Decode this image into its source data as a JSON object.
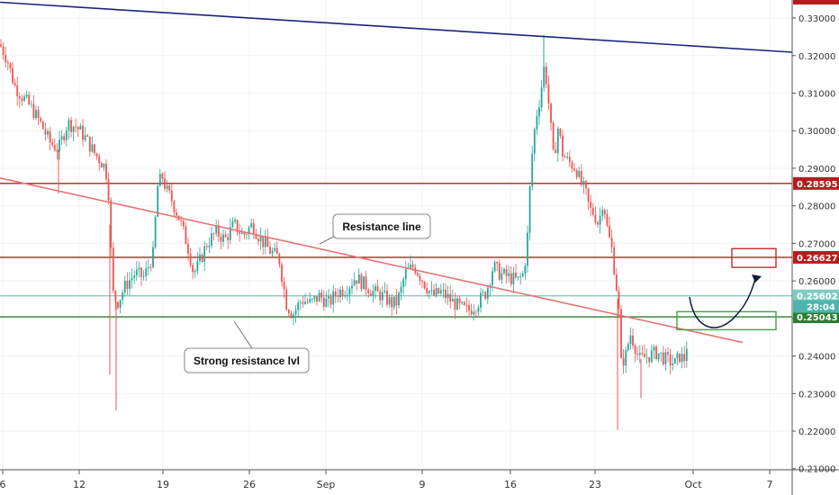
{
  "chart_data": {
    "type": "candlestick",
    "y_axis": {
      "ticks": [
        "0.33000",
        "0.32000",
        "0.31000",
        "0.30000",
        "0.29000",
        "0.28000",
        "0.27000",
        "0.26000",
        "0.25000",
        "0.24000",
        "0.23000",
        "0.22000",
        "0.21000"
      ],
      "ylim": [
        0.2097,
        0.3348
      ]
    },
    "x_axis": {
      "ticks": [
        "6",
        "12",
        "19",
        "26",
        "Sep",
        "9",
        "16",
        "23",
        "Oct",
        "7"
      ]
    },
    "price_path": [
      [
        0,
        0.323
      ],
      [
        8,
        0.319
      ],
      [
        16,
        0.312
      ],
      [
        25,
        0.309
      ],
      [
        35,
        0.306
      ],
      [
        45,
        0.302
      ],
      [
        55,
        0.297
      ],
      [
        65,
        0.295
      ],
      [
        75,
        0.302
      ],
      [
        85,
        0.301
      ],
      [
        95,
        0.298
      ],
      [
        105,
        0.294
      ],
      [
        115,
        0.291
      ],
      [
        120,
        0.287
      ],
      [
        125,
        0.257
      ],
      [
        130,
        0.254
      ],
      [
        140,
        0.259
      ],
      [
        150,
        0.262
      ],
      [
        160,
        0.261
      ],
      [
        170,
        0.267
      ],
      [
        175,
        0.285
      ],
      [
        180,
        0.288
      ],
      [
        185,
        0.284
      ],
      [
        190,
        0.282
      ],
      [
        200,
        0.276
      ],
      [
        210,
        0.268
      ],
      [
        215,
        0.262
      ],
      [
        220,
        0.264
      ],
      [
        230,
        0.27
      ],
      [
        240,
        0.273
      ],
      [
        250,
        0.271
      ],
      [
        260,
        0.275
      ],
      [
        270,
        0.272
      ],
      [
        280,
        0.275
      ],
      [
        290,
        0.271
      ],
      [
        300,
        0.268
      ],
      [
        310,
        0.266
      ],
      [
        318,
        0.254
      ],
      [
        325,
        0.251
      ],
      [
        335,
        0.255
      ],
      [
        345,
        0.254
      ],
      [
        355,
        0.256
      ],
      [
        365,
        0.254
      ],
      [
        375,
        0.257
      ],
      [
        385,
        0.258
      ],
      [
        395,
        0.261
      ],
      [
        405,
        0.259
      ],
      [
        415,
        0.257
      ],
      [
        425,
        0.256
      ],
      [
        435,
        0.254
      ],
      [
        440,
        0.254
      ],
      [
        445,
        0.257
      ],
      [
        450,
        0.262
      ],
      [
        460,
        0.264
      ],
      [
        470,
        0.26
      ],
      [
        480,
        0.256
      ],
      [
        490,
        0.257
      ],
      [
        500,
        0.255
      ],
      [
        510,
        0.253
      ],
      [
        520,
        0.252
      ],
      [
        530,
        0.254
      ],
      [
        540,
        0.257
      ],
      [
        548,
        0.264
      ],
      [
        555,
        0.262
      ],
      [
        565,
        0.261
      ],
      [
        575,
        0.26
      ],
      [
        582,
        0.262
      ],
      [
        586,
        0.272
      ],
      [
        590,
        0.291
      ],
      [
        595,
        0.303
      ],
      [
        600,
        0.309
      ],
      [
        605,
        0.318
      ],
      [
        610,
        0.306
      ],
      [
        615,
        0.292
      ],
      [
        620,
        0.301
      ],
      [
        625,
        0.294
      ],
      [
        630,
        0.292
      ],
      [
        640,
        0.29
      ],
      [
        645,
        0.286
      ],
      [
        650,
        0.284
      ],
      [
        655,
        0.279
      ],
      [
        660,
        0.278
      ],
      [
        665,
        0.275
      ],
      [
        670,
        0.282
      ],
      [
        675,
        0.273
      ],
      [
        680,
        0.268
      ],
      [
        685,
        0.258
      ],
      [
        688,
        0.25
      ],
      [
        690,
        0.238
      ],
      [
        695,
        0.24
      ],
      [
        700,
        0.246
      ],
      [
        705,
        0.243
      ],
      [
        710,
        0.239
      ],
      [
        720,
        0.24
      ],
      [
        730,
        0.241
      ],
      [
        740,
        0.239
      ],
      [
        750,
        0.238
      ],
      [
        755,
        0.24
      ],
      [
        760,
        0.239
      ],
      [
        765,
        0.246
      ]
    ],
    "spikes": [
      {
        "x": 122,
        "low": 0.235
      },
      {
        "x": 129,
        "low": 0.2255
      },
      {
        "x": 604,
        "high": 0.3255
      },
      {
        "x": 686,
        "low": 0.2203
      },
      {
        "x": 712,
        "low": 0.2288
      },
      {
        "x": 65,
        "low": 0.2832
      }
    ],
    "horizontal_levels": [
      {
        "value": 0.28595,
        "label": "0.28595",
        "color": "#b71c1c"
      },
      {
        "value": 0.26627,
        "label": "0.26627",
        "color": "#b71c1c"
      },
      {
        "value": 0.25602,
        "label": "0.25602",
        "color": "#80cbc4"
      },
      {
        "value": 0.25043,
        "label": "0.25043",
        "color": "#2e7d32"
      }
    ],
    "countdown_tag": "28:04",
    "trend_lines": [
      {
        "name": "resistance-line",
        "color": "#e57373",
        "x1": 0,
        "y1": 0.2874,
        "x2": 825,
        "y2": 0.2436
      },
      {
        "name": "top-trendline",
        "color": "#1a237e",
        "x1": 0,
        "y1": 0.3342,
        "x2": 880,
        "y2": 0.3209
      }
    ],
    "annotations": [
      {
        "text": "Resistance line"
      },
      {
        "text": "Strong resistance lvl"
      }
    ],
    "projection_boxes": [
      {
        "color": "#c62828",
        "x1": 813,
        "x2": 862,
        "ytop": 0.2686,
        "ybot": 0.2636
      },
      {
        "color": "#43a047",
        "x1": 752,
        "x2": 862,
        "ytop": 0.2518,
        "ybot": 0.247
      }
    ]
  }
}
